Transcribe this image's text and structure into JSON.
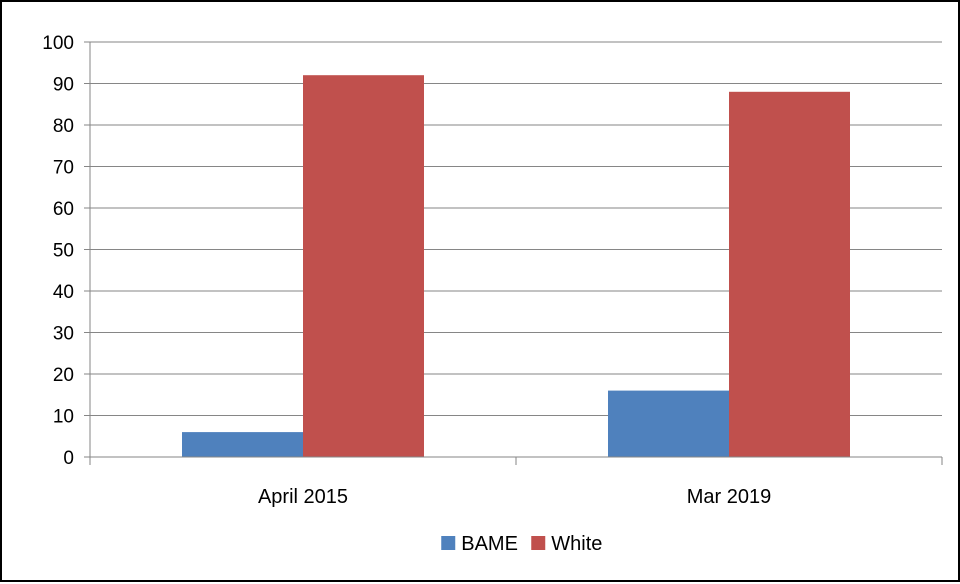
{
  "chart_data": {
    "type": "bar",
    "title": "",
    "xlabel": "",
    "ylabel": "",
    "categories": [
      "April 2015",
      "Mar 2019"
    ],
    "series": [
      {
        "name": "BAME",
        "values": [
          6,
          16
        ],
        "color": "#4F81BD"
      },
      {
        "name": "White",
        "values": [
          92,
          88
        ],
        "color": "#C0504D"
      }
    ],
    "ylim": [
      0,
      100
    ],
    "yticks": [
      "0",
      "10",
      "20",
      "30",
      "40",
      "50",
      "60",
      "70",
      "80",
      "90",
      "100"
    ],
    "grid": true,
    "legend_position": "bottom"
  }
}
